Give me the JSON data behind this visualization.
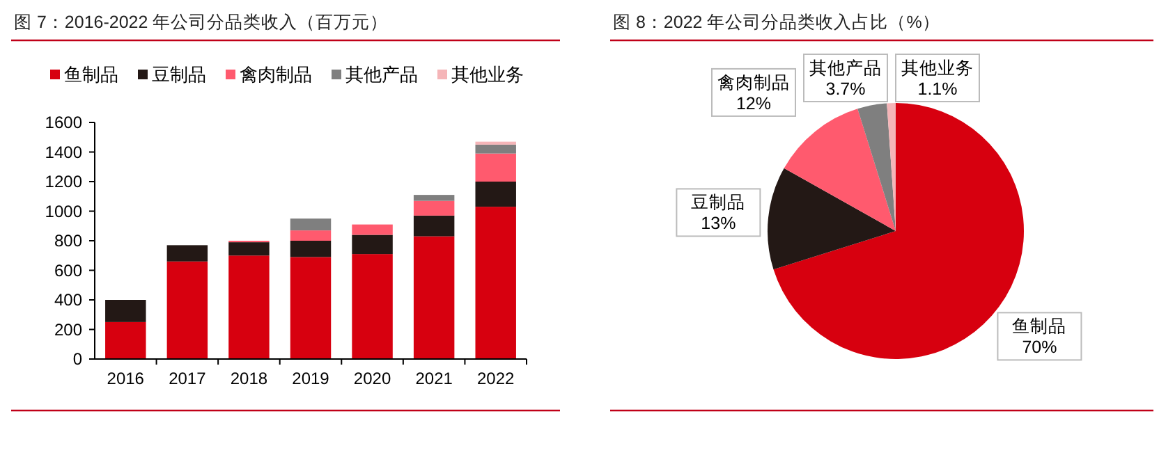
{
  "chart_data": [
    {
      "type": "bar",
      "title": "图 7：2016-2022 年公司分品类收入（百万元）",
      "stacked": true,
      "legend": "top",
      "grid": false,
      "categories": [
        "2016",
        "2017",
        "2018",
        "2019",
        "2020",
        "2021",
        "2022"
      ],
      "ylim": [
        0,
        1600
      ],
      "yticks": [
        0,
        200,
        400,
        600,
        800,
        1000,
        1200,
        1400,
        1600
      ],
      "series": [
        {
          "name": "鱼制品",
          "color": "#d7000f",
          "values": [
            250,
            660,
            700,
            690,
            710,
            830,
            1030
          ]
        },
        {
          "name": "豆制品",
          "color": "#231815",
          "values": [
            150,
            110,
            90,
            110,
            130,
            140,
            170
          ]
        },
        {
          "name": "禽肉制品",
          "color": "#ff5a6e",
          "values": [
            null,
            null,
            10,
            70,
            70,
            100,
            190
          ]
        },
        {
          "name": "其他产品",
          "color": "#7f7f7f",
          "values": [
            null,
            null,
            null,
            80,
            null,
            40,
            60
          ]
        },
        {
          "name": "其他业务",
          "color": "#f5b5b8",
          "values": [
            null,
            null,
            null,
            null,
            null,
            null,
            20
          ]
        }
      ]
    },
    {
      "type": "pie",
      "title": "图 8：2022 年公司分品类收入占比（%）",
      "categories": [
        "鱼制品",
        "豆制品",
        "禽肉制品",
        "其他产品",
        "其他业务"
      ],
      "values": [
        70,
        13,
        12,
        3.7,
        1.1
      ],
      "value_labels": [
        "70%",
        "13%",
        "12%",
        "3.7%",
        "1.1%"
      ],
      "colors": [
        "#d7000f",
        "#231815",
        "#ff5a6e",
        "#7f7f7f",
        "#f5b5b8"
      ]
    }
  ]
}
